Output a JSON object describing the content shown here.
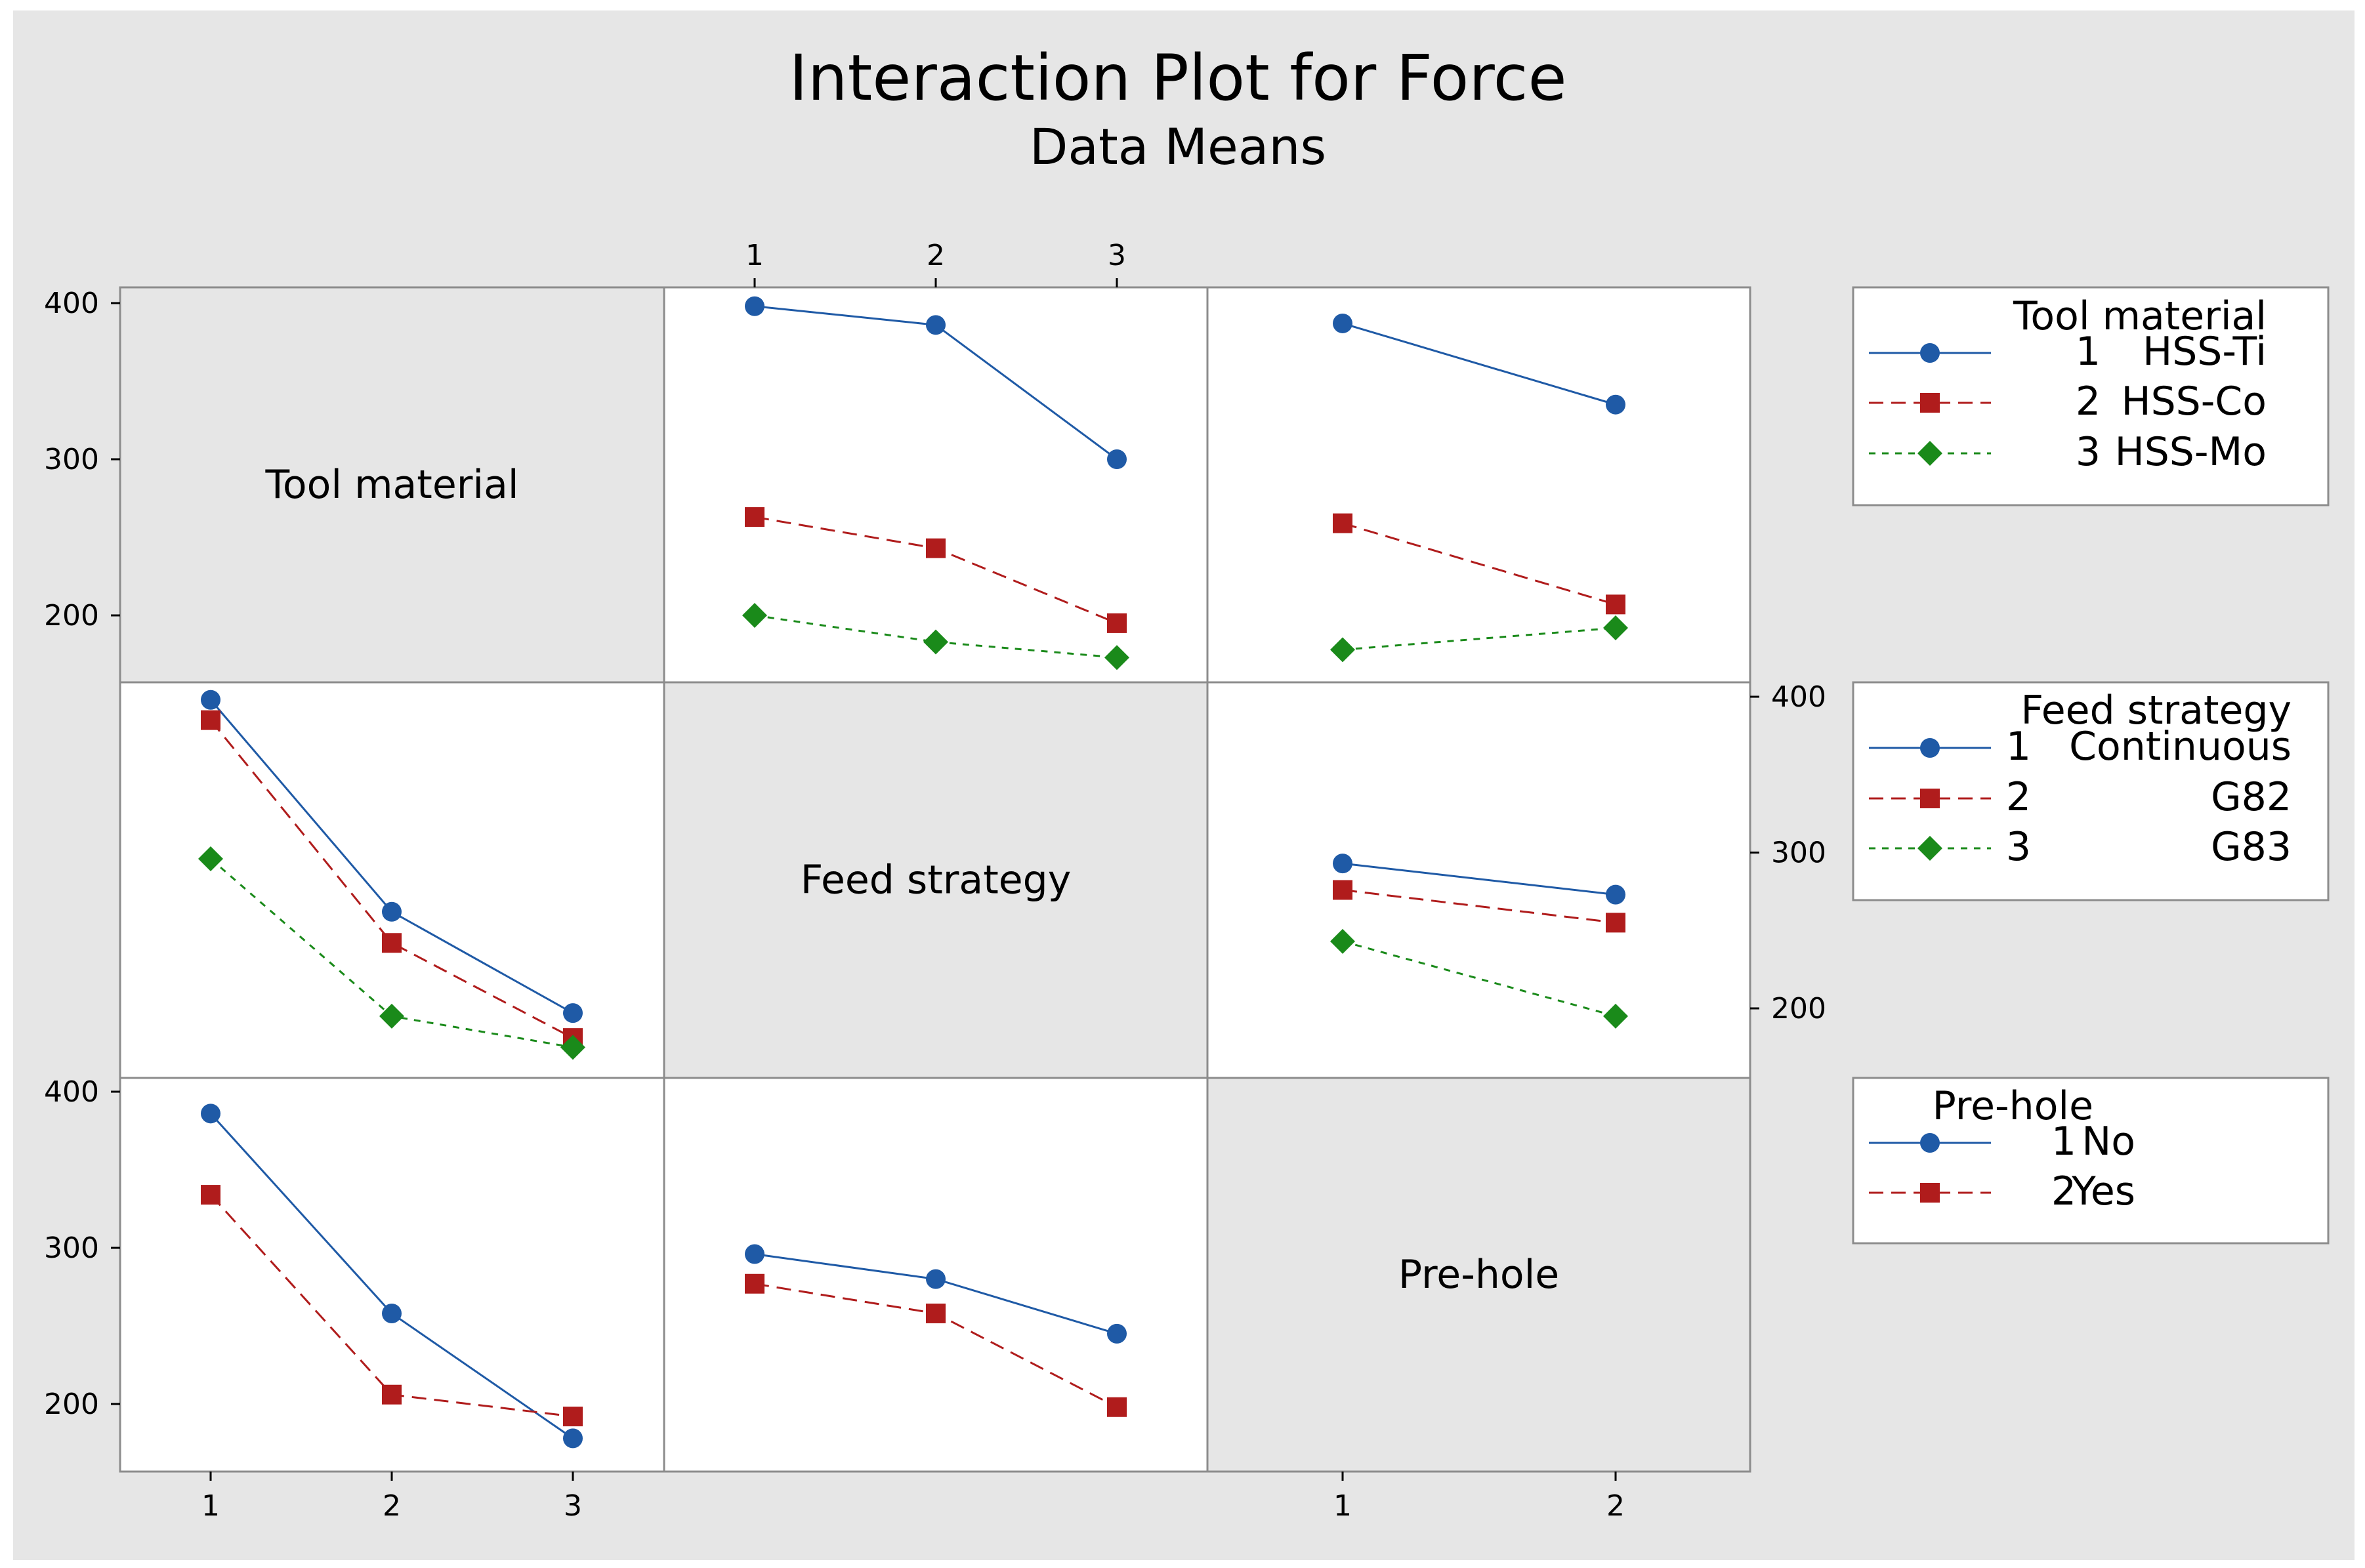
{
  "chart_data": {
    "type": "line",
    "chart_kind": "interaction plot matrix",
    "title": "Interaction Plot for Force",
    "subtitle": "Data Means",
    "ylim": [
      160,
      410
    ],
    "y_ticks": [
      200,
      300,
      400
    ],
    "factors": [
      {
        "name": "Tool material",
        "levels": [
          "1",
          "2",
          "3"
        ],
        "legend_title": "Tool material",
        "legend": [
          {
            "level": "1",
            "label": "HSS-Ti"
          },
          {
            "level": "2",
            "label": "HSS-Co"
          },
          {
            "level": "3",
            "label": "HSS-Mo"
          }
        ]
      },
      {
        "name": "Feed strategy",
        "levels": [
          "1",
          "2",
          "3"
        ],
        "legend_title": "Feed strategy",
        "legend": [
          {
            "level": "1",
            "label": "Continuous"
          },
          {
            "level": "2",
            "label": "G82"
          },
          {
            "level": "3",
            "label": "G83"
          }
        ]
      },
      {
        "name": "Pre-hole",
        "levels": [
          "1",
          "2"
        ],
        "legend_title": "Pre-hole",
        "legend": [
          {
            "level": "1",
            "label": "No"
          },
          {
            "level": "2",
            "label": "Yes"
          }
        ]
      }
    ],
    "series_styles": [
      {
        "color": "#1f5aa6",
        "marker": "circle",
        "dash": ""
      },
      {
        "color": "#b01c1c",
        "marker": "square",
        "dash": "22,12"
      },
      {
        "color": "#1a8a1a",
        "marker": "diamond",
        "dash": "10,10"
      }
    ],
    "panels": [
      {
        "row": 0,
        "col": 1,
        "x_factor": "Feed strategy",
        "trace_factor": "Tool material",
        "series": [
          {
            "name": "1 HSS-Ti",
            "values": [
              398,
              386,
              300
            ]
          },
          {
            "name": "2 HSS-Co",
            "values": [
              263,
              243,
              195
            ]
          },
          {
            "name": "3 HSS-Mo",
            "values": [
              200,
              183,
              173
            ]
          }
        ]
      },
      {
        "row": 0,
        "col": 2,
        "x_factor": "Pre-hole",
        "trace_factor": "Tool material",
        "series": [
          {
            "name": "1 HSS-Ti",
            "values": [
              387,
              335
            ]
          },
          {
            "name": "2 HSS-Co",
            "values": [
              259,
              207
            ]
          },
          {
            "name": "3 HSS-Mo",
            "values": [
              178,
              192
            ]
          }
        ]
      },
      {
        "row": 1,
        "col": 0,
        "x_factor": "Tool material",
        "trace_factor": "Feed strategy",
        "series": [
          {
            "name": "1 Continuous",
            "values": [
              398,
              262,
              197
            ]
          },
          {
            "name": "2 G82",
            "values": [
              385,
              242,
              181
            ]
          },
          {
            "name": "3 G83",
            "values": [
              296,
              195,
              175
            ]
          }
        ]
      },
      {
        "row": 1,
        "col": 2,
        "x_factor": "Pre-hole",
        "trace_factor": "Feed strategy",
        "series": [
          {
            "name": "1 Continuous",
            "values": [
              293,
              273
            ]
          },
          {
            "name": "2 G82",
            "values": [
              276,
              255
            ]
          },
          {
            "name": "3 G83",
            "values": [
              243,
              195
            ]
          }
        ]
      },
      {
        "row": 2,
        "col": 0,
        "x_factor": "Tool material",
        "trace_factor": "Pre-hole",
        "series": [
          {
            "name": "1 No",
            "values": [
              386,
              258
            ]
          },
          {
            "name": "2 Yes",
            "values": [
              334,
              206
            ]
          }
        ]
      },
      {
        "row": 2,
        "col": 1,
        "x_factor": "Feed strategy",
        "trace_factor": "Pre-hole",
        "series": [
          {
            "name": "1 No",
            "values": [
              296,
              280,
              245
            ]
          },
          {
            "name": "2 Yes",
            "values": [
              277,
              258,
              198
            ]
          }
        ]
      }
    ],
    "panel_extra_points": [
      {
        "row": 2,
        "col": 0,
        "series": 0,
        "x_index": 2,
        "value": 178
      },
      {
        "row": 2,
        "col": 0,
        "series": 1,
        "x_index": 2,
        "value": 192
      }
    ]
  }
}
